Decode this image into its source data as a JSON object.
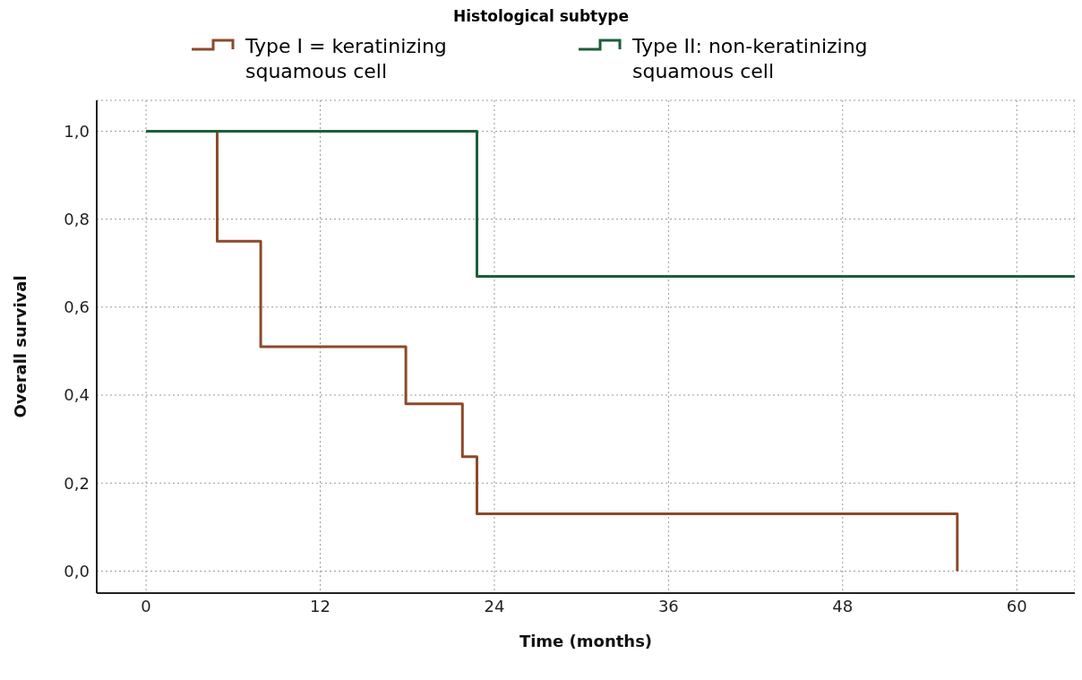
{
  "chart_data": {
    "type": "step",
    "legend_title": "Histological subtype",
    "xlabel": "Time (months)",
    "ylabel": "Overall survival",
    "series": [
      {
        "name": "Type I = keratinizing squamous cell",
        "color": "#8b4a2b",
        "x": [
          0,
          4.9,
          7.9,
          17.9,
          21.8,
          22.8,
          55.9
        ],
        "values": [
          1.0,
          0.75,
          0.51,
          0.38,
          0.26,
          0.13,
          0
        ]
      },
      {
        "name": "Type II: non-keratinizing squamous cell",
        "color": "#1d5e3a",
        "x": [
          0,
          22.8,
          64
        ],
        "values": [
          1.0,
          0.67,
          0.67
        ]
      }
    ],
    "xlim": [
      -3.4,
      64
    ],
    "xticks": [
      0,
      12,
      24,
      36,
      48,
      60
    ],
    "ylim": [
      -0.05,
      1.07
    ],
    "yticks": [
      {
        "value": 0,
        "label": "0,0"
      },
      {
        "value": 0.2,
        "label": "0,2"
      },
      {
        "value": 0.4,
        "label": "0,4"
      },
      {
        "value": 0.6,
        "label": "0,6"
      },
      {
        "value": 0.8,
        "label": "0,8"
      },
      {
        "value": 1,
        "label": "1,0"
      }
    ],
    "grid": true,
    "legend": "top",
    "marker": "none",
    "line_style": "solid"
  }
}
